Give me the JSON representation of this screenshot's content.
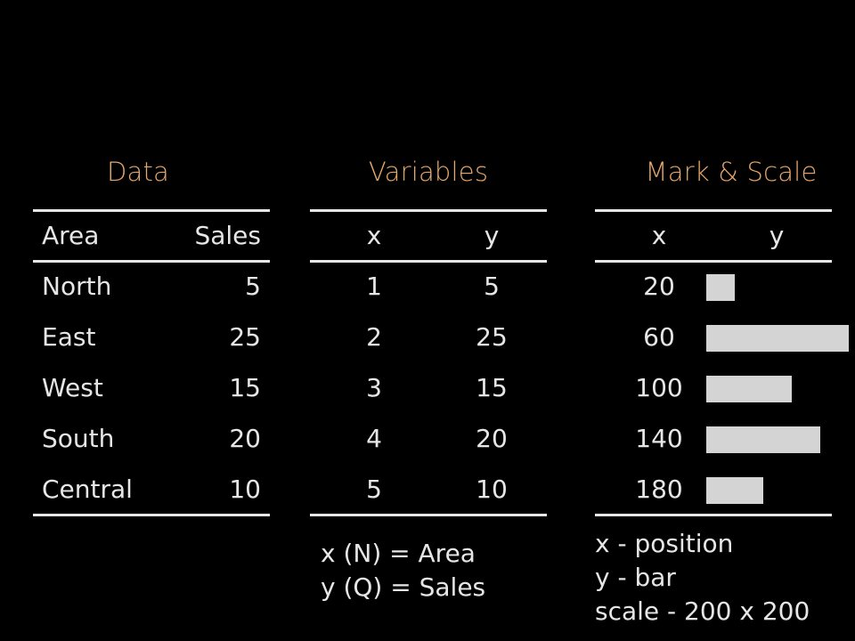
{
  "data_panel": {
    "title": "Data",
    "headers": [
      "Area",
      "Sales"
    ],
    "rows": [
      {
        "area": "North",
        "sales": "5"
      },
      {
        "area": "East",
        "sales": "25"
      },
      {
        "area": "West",
        "sales": "15"
      },
      {
        "area": "South",
        "sales": "20"
      },
      {
        "area": "Central",
        "sales": "10"
      }
    ]
  },
  "variables_panel": {
    "title": "Variables",
    "headers": [
      "x",
      "y"
    ],
    "rows": [
      {
        "x": "1",
        "y": "5"
      },
      {
        "x": "2",
        "y": "25"
      },
      {
        "x": "3",
        "y": "15"
      },
      {
        "x": "4",
        "y": "20"
      },
      {
        "x": "5",
        "y": "10"
      }
    ],
    "notes": [
      "x (N) = Area",
      "y (Q) = Sales"
    ]
  },
  "mark_panel": {
    "title": "Mark & Scale",
    "headers": [
      "x",
      "y"
    ],
    "rows": [
      {
        "x": "20",
        "value": 5
      },
      {
        "x": "60",
        "value": 25
      },
      {
        "x": "100",
        "value": 15
      },
      {
        "x": "140",
        "value": 20
      },
      {
        "x": "180",
        "value": 10
      }
    ],
    "notes": [
      "x - position",
      "y - bar",
      "scale - 200 x 200"
    ]
  },
  "colors": {
    "background": "#000000",
    "title": "#e6a76a",
    "text": "#e6e6e6",
    "bar": "#d4d4d4"
  }
}
